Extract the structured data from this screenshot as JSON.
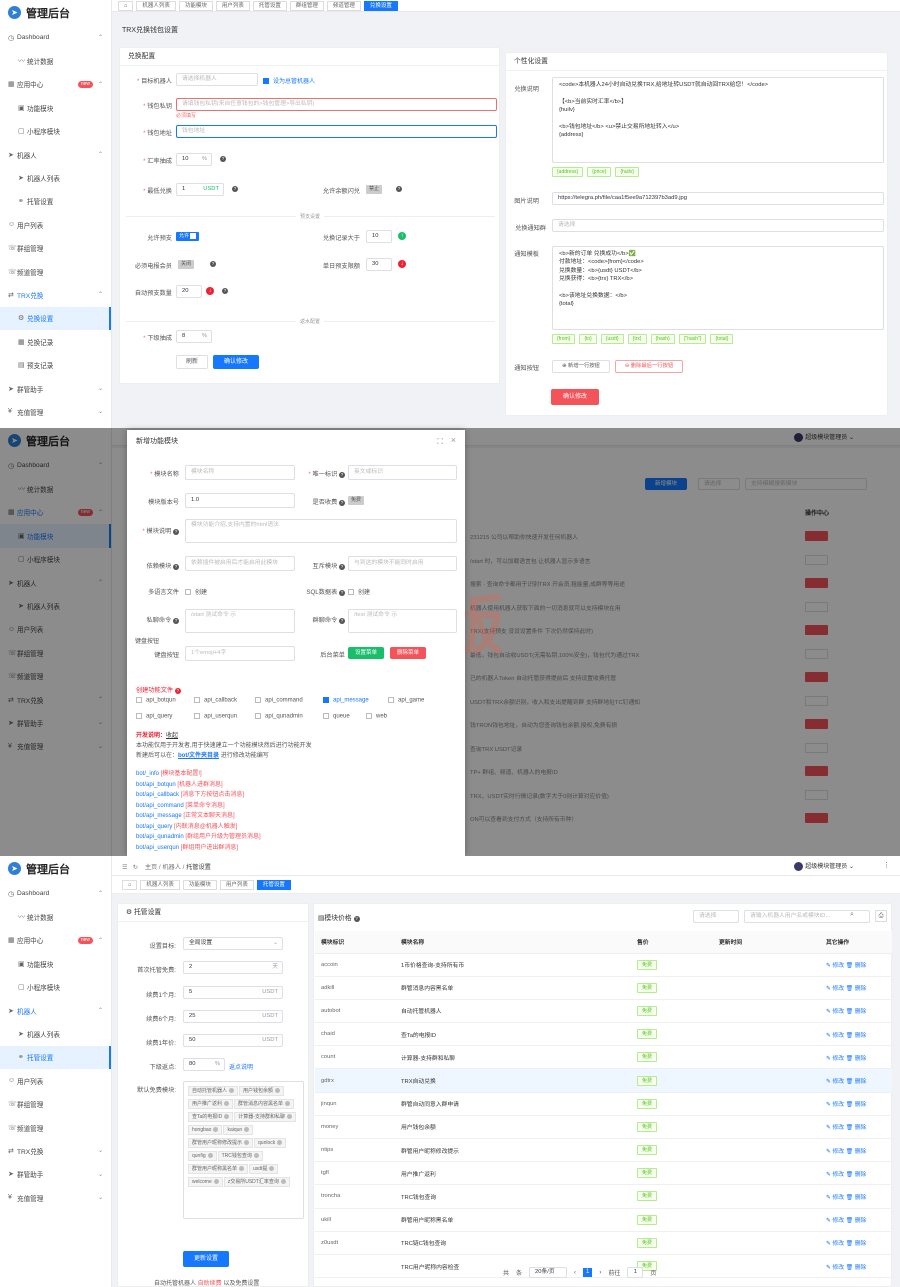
{
  "app": {
    "title": "管理后台"
  },
  "panel1": {
    "sidebar": [
      {
        "label": "Dashboard",
        "icon": "gauge-icon",
        "level": 0,
        "chev": "⌃"
      },
      {
        "label": "统计数据",
        "icon": "chart-icon",
        "level": 1
      },
      {
        "label": "应用中心",
        "icon": "apps-icon",
        "level": 0,
        "chev": "⌃",
        "badge": "new"
      },
      {
        "label": "功能模块",
        "icon": "box-icon",
        "level": 1
      },
      {
        "label": "小程序模块",
        "icon": "square-icon",
        "level": 1
      },
      {
        "label": "机器人",
        "icon": "send-icon",
        "level": 0,
        "chev": "⌃"
      },
      {
        "label": "机器人列表",
        "icon": "send-icon",
        "level": 1
      },
      {
        "label": "托管设置",
        "icon": "link-icon",
        "level": 1
      },
      {
        "label": "用户列表",
        "icon": "user-icon",
        "level": 0
      },
      {
        "label": "群组管理",
        "icon": "chat-icon",
        "level": 0
      },
      {
        "label": "频道管理",
        "icon": "chat-icon",
        "level": 0
      },
      {
        "label": "TRX兑换",
        "icon": "swap-icon",
        "level": 0,
        "chev": "⌃",
        "open": true
      },
      {
        "label": "兑换设置",
        "icon": "gear-icon",
        "level": 1,
        "active": true
      },
      {
        "label": "兑换记录",
        "icon": "grid-icon",
        "level": 1
      },
      {
        "label": "预支记录",
        "icon": "doc-icon",
        "level": 1
      },
      {
        "label": "群管助手",
        "icon": "send-icon",
        "level": 0,
        "chev": "⌄"
      },
      {
        "label": "充值管理",
        "icon": "yen-icon",
        "level": 0,
        "chev": "⌄"
      }
    ],
    "tabs": [
      "⌂",
      "机器人列表",
      "功能模块",
      "用户列表",
      "托管设置",
      "群组管理",
      "频道管理",
      "兑换设置"
    ],
    "page_title": "TRX兑换钱包设置",
    "left_card": {
      "title": "兑换配置",
      "target_label": "目标机器人",
      "target_placeholder": "请选择机器人",
      "target_check": "设为总管机器人",
      "privkey_label": "钱包私钥",
      "privkey_placeholder": "请填钱包私钥(来自任意钱包的>钱包管理>导出私钥)",
      "privkey_error": "必须填写",
      "addr_label": "钱包地址",
      "addr_placeholder": "钱包地址",
      "rate_label": "汇率抽成",
      "rate_value": "10",
      "rate_unit": "%",
      "min_label": "最低兑换",
      "min_value": "1",
      "min_unit": "USDT",
      "flash_label": "允许余额闪兑",
      "flash_switch": "禁止",
      "section_advance": "预支设置",
      "allow_adv_label": "允许预支",
      "allow_adv_switch": "允许",
      "adv_gt_label": "兑换记录大于",
      "adv_gt_value": "10",
      "member_label": "必须电报会员",
      "member_switch": "关闭",
      "single_label": "单日预支限额",
      "single_value": "30",
      "auto_label": "自动预支数量",
      "auto_value": "20",
      "section_rebate": "返水配置",
      "sub_label": "下级抽成",
      "sub_value": "8",
      "sub_unit": "%",
      "refresh": "刷新",
      "confirm": "确认修改"
    },
    "right_card": {
      "title": "个性化设置",
      "desc_label": "兑换说明",
      "desc_text": "<code>本机器人24小时自动兑换TRX,给地址转USDT就自动回TRX给您！</code>\n\n【<b>当前实时汇率</b>】\n{huilv}\n\n<b>钱包地址</b> <u>禁止交易所地址转入</u>\n{address}",
      "desc_tags": [
        "{address}",
        "{price}",
        "{huilv}"
      ],
      "img_label": "图片说明",
      "img_value": "https://telegra.ph/file/caa1f5ee9a712397b3ad9.jpg",
      "notify_group_label": "兑换通知群",
      "notify_group_placeholder": "请选择",
      "tpl_label": "通知模板",
      "tpl_text": "<b>新的订单 兑换成功</b>✅\n付款地址：<code>{from}</code>\n兑换数量：<b>{usdt} USDT</b>\n兑换获得：<b>{trx} TRX</b>\n\n<b>该地址兑换数据：</b>\n{total}",
      "tpl_tags": [
        "{from}",
        "{to}",
        "{usdt}",
        "{trx}",
        "{hash}",
        "{\"hash\"}",
        "{total}"
      ],
      "btn_label": "通知按钮",
      "add_row": "⊕ 新增一行按钮",
      "del_row": "⊖ 删除最后一行按钮",
      "confirm": "确认修改"
    }
  },
  "panel2": {
    "header_right": "超级模块管理员",
    "modal": {
      "title": "新增功能模块",
      "name_label": "模块名称",
      "name_placeholder": "模块名称",
      "id_label": "唯一标识",
      "id_placeholder": "英文或标识",
      "ver_label": "模块版本号",
      "ver_value": "1.0",
      "charge_label": "是否收费",
      "charge_switch": "免费",
      "desc_label": "模块说明",
      "desc_placeholder": "模块功能介绍,支持内置的html语法",
      "dep_label": "依赖模块",
      "dep_placeholder": "依赖插件被启用后才能启用此模块",
      "mutex_label": "互斥模块",
      "mutex_placeholder": "与到这的模块不能同时启用",
      "lang_label": "多语言文件",
      "lang_check": "创建",
      "sql_label": "SQL数据表",
      "sql_check": "创建",
      "private_label": "私聊命令",
      "private_placeholder": "/start 测试命令 示",
      "group_label": "群聊命令",
      "group_placeholder": "/test 测试命令 示",
      "kb_section": "键盘按钮",
      "kb_label": "键盘按钮",
      "kb_placeholder": "1个emoji+4字",
      "menu_label": "后台菜单",
      "menu_set": "设置菜单",
      "menu_del": "删除菜单",
      "create_files_label": "创建功能文件",
      "files": [
        [
          "api_botqun",
          false
        ],
        [
          "api_callback",
          false
        ],
        [
          "api_command",
          false
        ],
        [
          "api_message",
          true
        ],
        [
          "api_game",
          false
        ],
        [
          "api_query",
          false
        ],
        [
          "api_userqun",
          false
        ],
        [
          "api_qunadmin",
          false
        ],
        [
          "queue",
          false
        ],
        [
          "web",
          false
        ]
      ],
      "dev_title": "开发说明：",
      "dev_collapse": "收起",
      "dev_line1": "本功能仅用于开发者,用于快速建立一个功能模块然后进行功能开发",
      "dev_line2a": "新建后可以在：",
      "dev_line2b": "bot/文件夹目录",
      "dev_line2c": "进行修改功能编写",
      "files_desc": [
        [
          "bot/_info",
          "[模块基本配置!]"
        ],
        [
          "bot/api_botqun",
          "[机器人进群消息]"
        ],
        [
          "bot/api_callback",
          "[消息下方按钮点击消息]"
        ],
        [
          "bot/api_command",
          "[菜单命令消息]"
        ],
        [
          "bot/api_message",
          "[正常文本聊天消息]"
        ],
        [
          "bot/api_query",
          "[内联消息@机器人触发]"
        ],
        [
          "bot/api_qunadmin",
          "[群组用户升级为管理员消息]"
        ],
        [
          "bot/api_userqun",
          "[群组用户进出群消息]"
        ]
      ]
    },
    "watermark": "云海模版",
    "bg_new": "新增模块",
    "bg_search": "支持模糊搜索模块",
    "bg_ops": "操作中心",
    "bg_filter": "请选择",
    "bg_lines": [
      "231215 公司以帮助你快速开发任何机器人",
      "/start 时，可以加载语言包 让机器人显示多语言",
      "搜索 · 查询命令都用于识别TRX 开会员,租能量,成群等等用途",
      "机器人使用机器人获取下面的一切消息就可以支持模块在用",
      "TRX(支持预支 没设设置条件 下次仍然保持此时)",
      "最低，钱包自动收USDT(无需私钥,100%安全)，钱包代为通过TRX",
      "已的机器人Token 自动托管获得提前后 支持设置收费托管",
      "USDT和TRX余额识别，收入和支出提醒到群 支持群地址TC钉通知",
      "钱TRON钱包地址，自动为您查询钱包余额,授权,免费有损",
      "查询TRX USDT记录",
      "TP+ 群组、频道、机器人的电报ID",
      "TRX、USDT实时行情记录(数字大于0则计算对应价值)",
      "ON可以查看到支付方式（支持所有币种）"
    ]
  },
  "panel3": {
    "breadcrumb": [
      "主页",
      "机器人",
      "托管设置"
    ],
    "header_right": "超级模块管理员",
    "tabs": [
      "⌂",
      "机器人列表",
      "功能模块",
      "用户列表",
      "托管设置"
    ],
    "sidebar": [
      {
        "label": "Dashboard",
        "icon": "gauge-icon",
        "level": 0,
        "chev": "⌃"
      },
      {
        "label": "统计数据",
        "icon": "chart-icon",
        "level": 1
      },
      {
        "label": "应用中心",
        "icon": "apps-icon",
        "level": 0,
        "chev": "⌃",
        "badge": "new"
      },
      {
        "label": "功能模块",
        "icon": "box-icon",
        "level": 1
      },
      {
        "label": "小程序模块",
        "icon": "square-icon",
        "level": 1
      },
      {
        "label": "机器人",
        "icon": "send-icon",
        "level": 0,
        "chev": "⌃",
        "open": true
      },
      {
        "label": "机器人列表",
        "icon": "send-icon",
        "level": 1
      },
      {
        "label": "托管设置",
        "icon": "link-icon",
        "level": 1,
        "active": true
      },
      {
        "label": "用户列表",
        "icon": "user-icon",
        "level": 0
      },
      {
        "label": "群组管理",
        "icon": "chat-icon",
        "level": 0
      },
      {
        "label": "频道管理",
        "icon": "chat-icon",
        "level": 0
      },
      {
        "label": "TRX兑换",
        "icon": "swap-icon",
        "level": 0,
        "chev": "⌄"
      },
      {
        "label": "群管助手",
        "icon": "send-icon",
        "level": 0,
        "chev": "⌄"
      },
      {
        "label": "充值管理",
        "icon": "yen-icon",
        "level": 0,
        "chev": "⌄"
      }
    ],
    "left": {
      "title": "托管设置",
      "target_label": "设置目标:",
      "target_value": "全局设置",
      "first_label": "首次托管免费:",
      "first_value": "2",
      "first_unit": "天",
      "m1_label": "续费1个月:",
      "m1_value": "5",
      "m1_unit": "USDT",
      "m6_label": "续费6个月:",
      "m6_value": "25",
      "m6_unit": "USDT",
      "y1_label": "续费1年价:",
      "y1_value": "50",
      "y1_unit": "USDT",
      "rebate_label": "下级返点:",
      "rebate_value": "80",
      "rebate_unit": "%",
      "rebate_link": "返点说明",
      "free_label": "默认免费模块:",
      "chips": [
        "自动托管机器人",
        "用户钱包余额",
        "用户推广返利",
        "群管消息内容黑名单",
        "查Ta的电报ID",
        "计算器-支持群和私聊",
        "hongbao",
        "kaiqun",
        "群管用户昵称修改提示",
        "qunlock",
        "qunfig",
        "TRC钱包查询",
        "群管用户昵称黑名单",
        "usdt提",
        "welcome",
        "z交易所USDT汇率查询"
      ],
      "update": "更新设置",
      "footer_a": "自动托管机器人 ",
      "footer_b": "自助续费",
      "footer_c": " 以及免费设置"
    },
    "right": {
      "title": "模块价格",
      "filter_placeholder": "请选择",
      "search_placeholder": "请输入机器人用户名或模块ID...",
      "cols": [
        "模块标识",
        "模块名称",
        "售价",
        "更新时间",
        "其它操作"
      ],
      "rows": [
        [
          "accoin",
          "1币价格查询-支持所有币",
          "免费"
        ],
        [
          "adkill",
          "群管消息内容黑名单",
          "免费"
        ],
        [
          "autobot",
          "自动托管机器人",
          "免费"
        ],
        [
          "chaid",
          "查Ta的电报ID",
          "免费"
        ],
        [
          "count",
          "计算器-支持群和私聊",
          "免费"
        ],
        [
          "gdtrx",
          "TRX自动兑换",
          "免费"
        ],
        [
          "jinqun",
          "群管自动同意入群申请",
          "免费"
        ],
        [
          "money",
          "用户钱包余额",
          "免费"
        ],
        [
          "ntips",
          "群管用户昵称修改提示",
          "免费"
        ],
        [
          "tgfl",
          "用户推广返利",
          "免费"
        ],
        [
          "troncha",
          "TRC钱包查询",
          "免费"
        ],
        [
          "ukill",
          "群管用户昵称黑名单",
          "免费"
        ],
        [
          "z0usdt",
          "TRC链C钱包查询",
          "免费"
        ],
        [
          "",
          "TRC用户昵称内容检查",
          "免费"
        ]
      ],
      "edit": "修改",
      "del": "删除",
      "pager": {
        "total_prefix": "共",
        "total_suffix": "条",
        "size": "20条/页",
        "page": "1",
        "goto": "前往",
        "goto_val": "1",
        "page_suffix": "页"
      }
    }
  }
}
